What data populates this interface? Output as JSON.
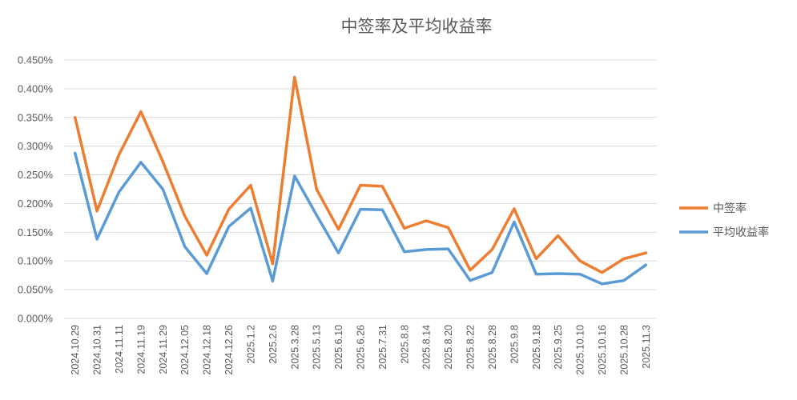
{
  "chart_data": {
    "type": "line",
    "title": "中签率及平均收益率",
    "xlabel": "",
    "ylabel": "",
    "categories": [
      "2024.10.29",
      "2024.10.31",
      "2024.11.11",
      "2024.11.19",
      "2024.11.29",
      "2024.12.05",
      "2024.12.18",
      "2024.12.26",
      "2025.1.2",
      "2025.2.6",
      "2025.3.28",
      "2025.5.13",
      "2025.6.10",
      "2025.6.26",
      "2025.7.31",
      "2025.8.8",
      "2025.8.14",
      "2025.8.20",
      "2025.8.22",
      "2025.8.28",
      "2025.9.8",
      "2025.9.18",
      "2025.9.25",
      "2025.10.10",
      "2025.10.16",
      "2025.10.28",
      "2025.11.3"
    ],
    "ylim": [
      0,
      0.0045
    ],
    "yticks": [
      {
        "value": 0,
        "label": "0.000%"
      },
      {
        "value": 0.0005,
        "label": "0.050%"
      },
      {
        "value": 0.001,
        "label": "0.100%"
      },
      {
        "value": 0.0015,
        "label": "0.150%"
      },
      {
        "value": 0.002,
        "label": "0.200%"
      },
      {
        "value": 0.0025,
        "label": "0.250%"
      },
      {
        "value": 0.003,
        "label": "0.300%"
      },
      {
        "value": 0.0035,
        "label": "0.350%"
      },
      {
        "value": 0.004,
        "label": "0.400%"
      },
      {
        "value": 0.0045,
        "label": "0.450%"
      }
    ],
    "grid": true,
    "legend_position": "right",
    "series": [
      {
        "name": "中签率",
        "color": "#ED7D31",
        "values": [
          0.0035,
          0.00187,
          0.00285,
          0.0036,
          0.00273,
          0.00178,
          0.0011,
          0.0019,
          0.00232,
          0.00095,
          0.0042,
          0.00225,
          0.00155,
          0.00232,
          0.0023,
          0.00157,
          0.0017,
          0.00158,
          0.00084,
          0.0012,
          0.00191,
          0.00104,
          0.00144,
          0.001,
          0.0008,
          0.00104,
          0.00114
        ]
      },
      {
        "name": "平均收益率",
        "color": "#5B9BD5",
        "values": [
          0.00288,
          0.00138,
          0.0022,
          0.00272,
          0.00225,
          0.00125,
          0.00078,
          0.0016,
          0.00192,
          0.00065,
          0.00248,
          0.0018,
          0.00114,
          0.0019,
          0.00189,
          0.00116,
          0.0012,
          0.00121,
          0.00066,
          0.0008,
          0.00168,
          0.00077,
          0.00078,
          0.00077,
          0.0006,
          0.00066,
          0.00093
        ]
      }
    ]
  }
}
